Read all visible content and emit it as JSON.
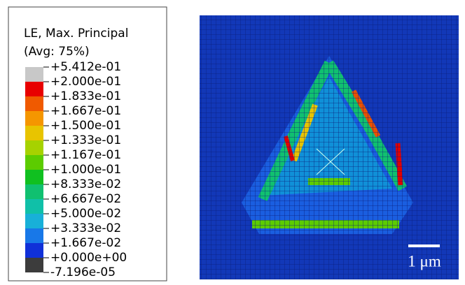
{
  "legend": {
    "title": "LE, Max. Principal",
    "subtitle": "(Avg: 75%)",
    "levels": [
      "+5.412e-01",
      "+2.000e-01",
      "+1.833e-01",
      "+1.667e-01",
      "+1.500e-01",
      "+1.333e-01",
      "+1.167e-01",
      "+1.000e-01",
      "+8.333e-02",
      "+6.667e-02",
      "+5.000e-02",
      "+3.333e-02",
      "+1.667e-02",
      "+0.000e+00",
      "-7.196e-05"
    ],
    "colors": [
      "#c8c8c8",
      "#e80000",
      "#f05a00",
      "#f59600",
      "#e8c400",
      "#a6d200",
      "#5ccc00",
      "#10c020",
      "#10c070",
      "#10c0a8",
      "#18b0d8",
      "#1878e8",
      "#1030d8",
      "#3c3c3c"
    ]
  },
  "image": {
    "scale_bar": "1 μm"
  }
}
